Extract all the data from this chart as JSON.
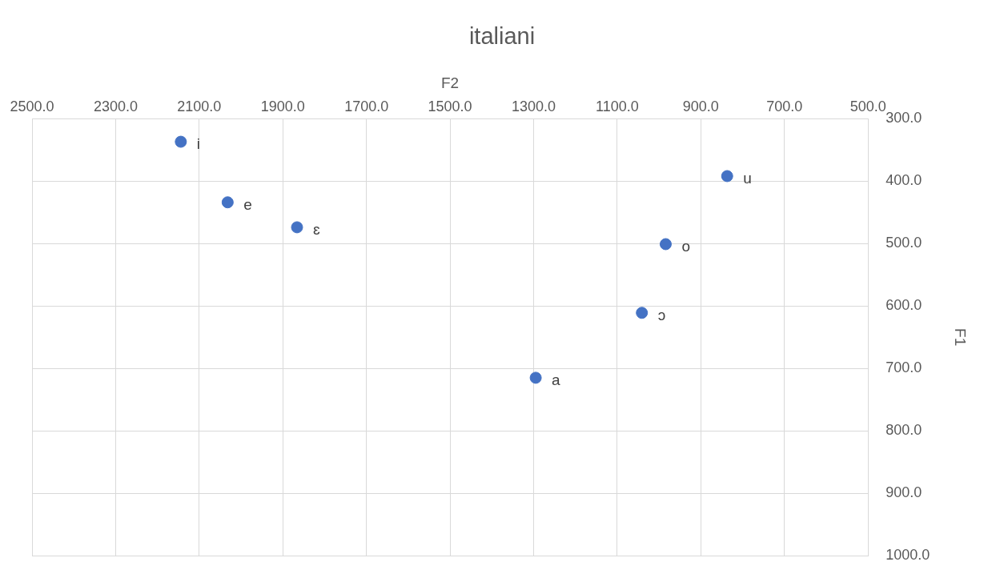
{
  "chart_data": {
    "type": "scatter",
    "title": "italiani",
    "xlabel": "F2",
    "ylabel": "F1",
    "x": [
      2144,
      2032,
      1866,
      1295,
      1041,
      984,
      837
    ],
    "series": [
      {
        "color": "#4472c4",
        "values": [
          337,
          434,
          474,
          715,
          611,
          501,
          392
        ]
      }
    ],
    "xlim": [
      2500,
      500
    ],
    "ylim": [
      1000,
      300
    ],
    "xticks": [
      {
        "value": 2500,
        "label": "2500.0"
      },
      {
        "value": 2300,
        "label": "2300.0"
      },
      {
        "value": 2100,
        "label": "2100.0"
      },
      {
        "value": 1900,
        "label": "1900.0"
      },
      {
        "value": 1700,
        "label": "1700.0"
      },
      {
        "value": 1500,
        "label": "1500.0"
      },
      {
        "value": 1300,
        "label": "1300.0"
      },
      {
        "value": 1100,
        "label": "1100.0"
      },
      {
        "value": 900,
        "label": "900.0"
      },
      {
        "value": 700,
        "label": "700.0"
      },
      {
        "value": 500,
        "label": "500.0"
      }
    ],
    "yticks": [
      {
        "value": 300,
        "label": "300.0"
      },
      {
        "value": 400,
        "label": "400.0"
      },
      {
        "value": 500,
        "label": "500.0"
      },
      {
        "value": 600,
        "label": "600.0"
      },
      {
        "value": 700,
        "label": "700.0"
      },
      {
        "value": 800,
        "label": "800.0"
      },
      {
        "value": 900,
        "label": "900.0"
      },
      {
        "value": 1000,
        "label": "1000.0"
      }
    ],
    "grid": true,
    "marker": "circle",
    "annotations": [
      {
        "text": "i",
        "x": 2144,
        "y": 337
      },
      {
        "text": "e",
        "x": 2032,
        "y": 434
      },
      {
        "text": "ɛ",
        "x": 1866,
        "y": 474
      },
      {
        "text": "a",
        "x": 1295,
        "y": 715
      },
      {
        "text": "ɔ",
        "x": 1041,
        "y": 611
      },
      {
        "text": "o",
        "x": 984,
        "y": 501
      },
      {
        "text": "u",
        "x": 837,
        "y": 392
      }
    ]
  }
}
